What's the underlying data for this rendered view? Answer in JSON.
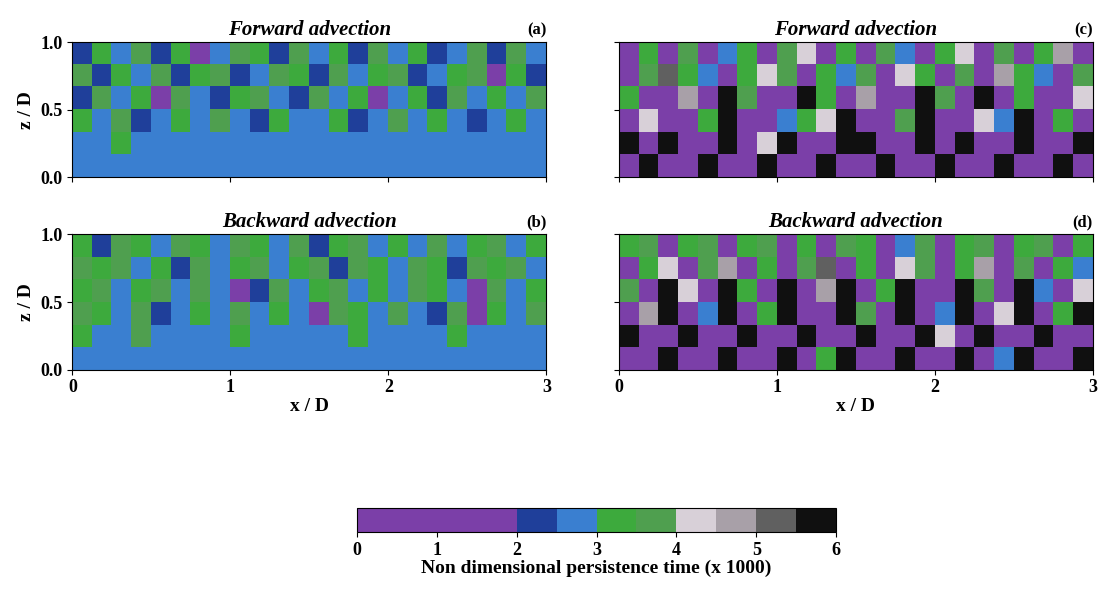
{
  "chart_data": [
    {
      "type": "heatmap",
      "title": "Forward advection",
      "panel_label": "(a)",
      "ylabel": "z / D",
      "xlim": [
        0,
        3
      ],
      "ylim": [
        0,
        1
      ],
      "xticks": [
        0,
        1,
        2,
        3
      ],
      "yticks": [
        {
          "value": 0,
          "label": "0.0"
        },
        {
          "value": 0.5,
          "label": "0.5"
        },
        {
          "value": 1,
          "label": "1.0"
        }
      ],
      "tick_labels": "y",
      "cells": [
        [
          2.7,
          2.7,
          2.7,
          2.7,
          2.7,
          2.7,
          2.7,
          2.7,
          2.7,
          2.7,
          2.7,
          2.7,
          2.7,
          2.7,
          2.7,
          2.7,
          2.7,
          2.7,
          2.7,
          2.7,
          2.7,
          2.7,
          2.7,
          2.7
        ],
        [
          2.7,
          2.7,
          3.2,
          2.7,
          2.7,
          2.7,
          2.7,
          2.7,
          2.7,
          2.7,
          2.7,
          2.7,
          2.7,
          2.7,
          2.7,
          2.7,
          2.7,
          2.7,
          2.7,
          2.7,
          2.7,
          2.7,
          2.7,
          2.7
        ],
        [
          3.2,
          2.7,
          3.7,
          2.2,
          2.7,
          3.2,
          2.7,
          3.7,
          2.7,
          2.2,
          3.2,
          2.7,
          2.7,
          3.2,
          2.2,
          2.7,
          3.7,
          2.7,
          3.2,
          2.7,
          2.2,
          2.7,
          3.2,
          2.7
        ],
        [
          2.2,
          3.7,
          2.7,
          3.2,
          1.0,
          3.7,
          2.7,
          2.2,
          3.2,
          3.7,
          2.7,
          2.2,
          3.7,
          2.7,
          3.2,
          1.0,
          2.7,
          3.2,
          2.2,
          3.7,
          2.7,
          3.2,
          2.7,
          3.7
        ],
        [
          3.7,
          2.2,
          3.2,
          2.7,
          3.7,
          2.2,
          3.2,
          3.7,
          2.2,
          2.7,
          3.7,
          3.2,
          2.2,
          3.7,
          2.7,
          3.2,
          3.7,
          2.2,
          2.7,
          3.2,
          3.7,
          1.0,
          3.2,
          2.2
        ],
        [
          2.2,
          3.2,
          2.7,
          3.7,
          2.2,
          3.2,
          1.0,
          2.7,
          3.7,
          3.2,
          2.2,
          3.7,
          2.7,
          3.2,
          2.2,
          3.7,
          2.7,
          3.2,
          2.2,
          2.7,
          3.7,
          2.2,
          3.7,
          2.7
        ]
      ]
    },
    {
      "type": "heatmap",
      "title": "Backward advection",
      "panel_label": "(b)",
      "xlabel": "x / D",
      "ylabel": "z / D",
      "xlim": [
        0,
        3
      ],
      "ylim": [
        0,
        1
      ],
      "xticks": [
        0,
        1,
        2,
        3
      ],
      "yticks": [
        {
          "value": 0,
          "label": "0.0"
        },
        {
          "value": 0.5,
          "label": "0.5"
        },
        {
          "value": 1,
          "label": "1.0"
        }
      ],
      "cells": [
        [
          2.7,
          2.7,
          2.7,
          2.7,
          2.7,
          2.7,
          2.7,
          2.7,
          2.7,
          2.7,
          2.7,
          2.7,
          2.7,
          2.7,
          2.7,
          2.7,
          2.7,
          2.7,
          2.7,
          2.7,
          2.7,
          2.7,
          2.7,
          2.7
        ],
        [
          3.2,
          2.7,
          2.7,
          3.7,
          2.7,
          2.7,
          2.7,
          2.7,
          3.2,
          2.7,
          2.7,
          2.7,
          2.7,
          2.7,
          3.2,
          2.7,
          2.7,
          2.7,
          2.7,
          3.2,
          2.7,
          2.7,
          2.7,
          2.7
        ],
        [
          3.7,
          3.2,
          2.7,
          3.7,
          2.2,
          2.7,
          3.2,
          2.7,
          3.7,
          2.7,
          3.2,
          2.7,
          1.0,
          3.7,
          3.2,
          2.7,
          3.7,
          2.7,
          2.2,
          3.7,
          1.0,
          3.2,
          2.7,
          3.7
        ],
        [
          3.2,
          3.7,
          2.7,
          3.2,
          3.7,
          2.7,
          3.7,
          2.7,
          1.0,
          2.2,
          3.7,
          2.7,
          3.2,
          3.7,
          2.7,
          3.2,
          2.7,
          3.7,
          3.2,
          2.7,
          1.0,
          3.7,
          2.7,
          3.2
        ],
        [
          3.7,
          3.2,
          3.7,
          2.7,
          3.2,
          2.2,
          3.7,
          2.7,
          3.2,
          3.7,
          2.7,
          3.2,
          3.7,
          2.2,
          3.7,
          3.2,
          2.7,
          3.7,
          3.2,
          2.2,
          3.7,
          3.2,
          3.7,
          2.7
        ],
        [
          3.2,
          2.2,
          3.7,
          3.2,
          2.7,
          3.7,
          3.2,
          2.7,
          3.7,
          3.2,
          2.7,
          3.7,
          2.2,
          3.2,
          3.7,
          2.7,
          3.2,
          2.7,
          3.7,
          2.7,
          3.2,
          3.7,
          2.7,
          3.2
        ]
      ]
    },
    {
      "type": "heatmap",
      "title": "Forward advection",
      "panel_label": "(c)",
      "xlim": [
        0,
        3
      ],
      "ylim": [
        0,
        1
      ],
      "xticks": [
        0,
        1,
        2,
        3
      ],
      "yticks": [
        {
          "value": 0,
          "label": "0.0"
        },
        {
          "value": 0.5,
          "label": "0.5"
        },
        {
          "value": 1,
          "label": "1.0"
        }
      ],
      "tick_labels": false,
      "cells": [
        [
          1.0,
          5.8,
          1.0,
          1.0,
          5.8,
          1.0,
          1.0,
          5.8,
          1.0,
          1.0,
          5.8,
          1.0,
          1.0,
          5.8,
          1.0,
          1.0,
          5.8,
          1.0,
          1.0,
          5.8,
          1.0,
          1.0,
          5.8,
          1.0
        ],
        [
          5.8,
          1.0,
          5.8,
          1.0,
          1.0,
          5.8,
          1.0,
          4.2,
          5.8,
          1.0,
          1.0,
          5.8,
          5.8,
          1.0,
          1.0,
          5.8,
          1.0,
          5.8,
          1.0,
          1.0,
          5.8,
          1.0,
          1.0,
          5.8
        ],
        [
          1.0,
          4.2,
          1.0,
          1.0,
          3.2,
          5.8,
          1.0,
          1.0,
          2.7,
          3.2,
          4.2,
          5.8,
          1.0,
          1.0,
          3.7,
          5.8,
          1.0,
          1.0,
          4.2,
          2.7,
          5.8,
          1.0,
          3.2,
          1.0
        ],
        [
          3.2,
          1.0,
          1.0,
          4.7,
          1.0,
          5.8,
          3.7,
          1.0,
          1.0,
          5.8,
          3.2,
          1.0,
          4.7,
          1.0,
          1.0,
          5.8,
          3.7,
          1.0,
          5.8,
          1.0,
          3.2,
          1.0,
          1.0,
          4.2
        ],
        [
          1.0,
          3.7,
          5.3,
          3.2,
          2.7,
          1.0,
          3.2,
          4.2,
          3.7,
          1.0,
          3.2,
          2.7,
          3.7,
          1.0,
          4.2,
          3.2,
          1.0,
          3.7,
          1.0,
          4.7,
          3.2,
          2.7,
          1.0,
          3.7
        ],
        [
          1.0,
          3.2,
          1.0,
          3.7,
          1.0,
          2.7,
          3.2,
          1.0,
          3.7,
          4.2,
          1.0,
          3.2,
          1.0,
          3.7,
          2.7,
          1.0,
          3.2,
          4.2,
          1.0,
          3.7,
          1.0,
          3.2,
          4.7,
          1.0
        ]
      ]
    },
    {
      "type": "heatmap",
      "title": "Backward advection",
      "panel_label": "(d)",
      "xlabel": "x / D",
      "xlim": [
        0,
        3
      ],
      "ylim": [
        0,
        1
      ],
      "xticks": [
        0,
        1,
        2,
        3
      ],
      "yticks": [
        {
          "value": 0,
          "label": "0.0"
        },
        {
          "value": 0.5,
          "label": "0.5"
        },
        {
          "value": 1,
          "label": "1.0"
        }
      ],
      "tick_labels": "x",
      "cells": [
        [
          1.0,
          1.0,
          5.8,
          1.0,
          1.0,
          5.8,
          1.0,
          1.0,
          5.8,
          1.0,
          3.2,
          5.8,
          1.0,
          1.0,
          5.8,
          1.0,
          1.0,
          5.8,
          1.0,
          2.7,
          5.8,
          1.0,
          1.0,
          5.8
        ],
        [
          5.8,
          1.0,
          1.0,
          5.8,
          1.0,
          1.0,
          5.8,
          1.0,
          1.0,
          5.8,
          1.0,
          1.0,
          5.8,
          1.0,
          1.0,
          5.8,
          4.2,
          1.0,
          5.8,
          1.0,
          1.0,
          5.8,
          1.0,
          1.0
        ],
        [
          1.0,
          4.7,
          5.8,
          1.0,
          2.7,
          5.8,
          1.0,
          3.2,
          5.8,
          1.0,
          1.0,
          5.8,
          3.7,
          1.0,
          5.8,
          1.0,
          2.7,
          5.8,
          1.0,
          4.2,
          5.8,
          1.0,
          3.2,
          5.8
        ],
        [
          3.7,
          1.0,
          5.8,
          4.2,
          1.0,
          5.8,
          3.2,
          1.0,
          5.8,
          1.0,
          4.7,
          5.8,
          1.0,
          3.2,
          5.8,
          1.0,
          1.0,
          5.8,
          3.7,
          1.0,
          5.8,
          2.7,
          1.0,
          4.2
        ],
        [
          1.0,
          3.2,
          4.2,
          1.0,
          3.7,
          4.7,
          1.0,
          3.2,
          1.0,
          3.7,
          5.3,
          1.0,
          3.2,
          1.0,
          4.2,
          3.7,
          1.0,
          3.2,
          4.7,
          1.0,
          3.7,
          1.0,
          3.2,
          2.7
        ],
        [
          3.2,
          3.7,
          1.0,
          3.2,
          3.7,
          1.0,
          3.2,
          3.7,
          1.0,
          3.2,
          1.0,
          3.7,
          3.2,
          1.0,
          2.7,
          3.7,
          1.0,
          3.2,
          3.7,
          1.0,
          3.2,
          3.7,
          1.0,
          3.2
        ]
      ]
    }
  ],
  "colorbar": {
    "label": "Non dimensional persistence time (x 1000)",
    "range": [
      0,
      6
    ],
    "ticks": [
      0,
      1,
      2,
      3,
      4,
      5,
      6
    ],
    "bounds": [
      0,
      2,
      2.5,
      3,
      3.5,
      4,
      4.5,
      5,
      5.5,
      6
    ],
    "colors": [
      "#7b3fa8",
      "#1f3f9a",
      "#3a7fd0",
      "#3daa3d",
      "#4f9f4f",
      "#d8d0d8",
      "#a8a0a8",
      "#606060",
      "#101010"
    ]
  }
}
